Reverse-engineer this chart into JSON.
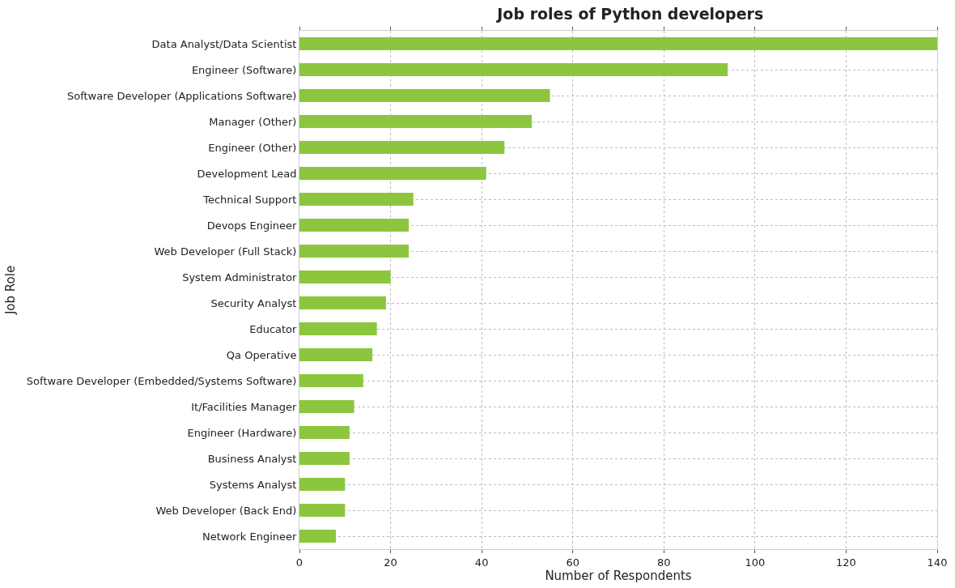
{
  "chart_data": {
    "type": "bar",
    "orientation": "horizontal",
    "title": "Job roles of Python developers",
    "xlabel": "Number of Respondents",
    "ylabel": "Job Role",
    "categories": [
      "Data Analyst/Data Scientist",
      "Engineer (Software)",
      "Software Developer (Applications Software)",
      "Manager (Other)",
      "Engineer (Other)",
      "Development Lead",
      "Technical Support",
      "Devops Engineer",
      "Web Developer (Full Stack)",
      "System Administrator",
      "Security Analyst",
      "Educator",
      "Qa Operative",
      "Software Developer (Embedded/Systems Software)",
      "It/Facilities Manager",
      "Engineer (Hardware)",
      "Business Analyst",
      "Systems Analyst",
      "Web Developer (Back End)",
      "Network Engineer"
    ],
    "values": [
      140,
      94,
      55,
      51,
      45,
      41,
      25,
      24,
      24,
      20,
      19,
      17,
      16,
      14,
      12,
      11,
      11,
      10,
      10,
      8
    ],
    "color": "#8cc63f",
    "xlim": [
      0,
      140
    ],
    "xticks": [
      0,
      20,
      40,
      60,
      80,
      100,
      120,
      140
    ],
    "grid": true
  }
}
